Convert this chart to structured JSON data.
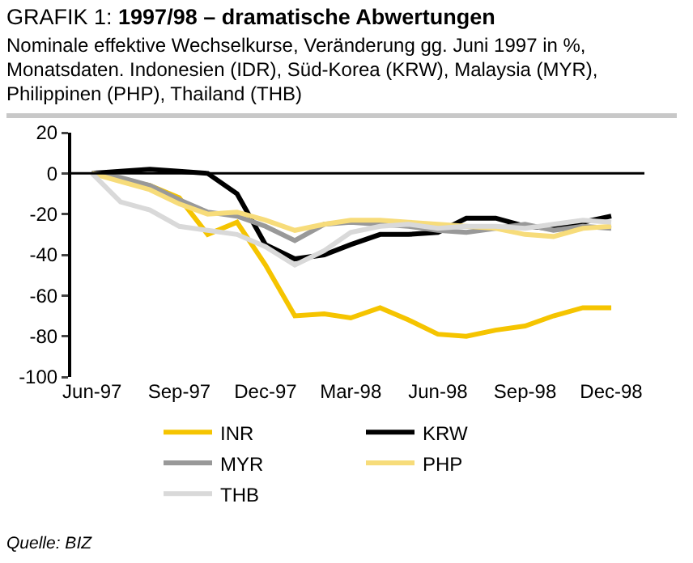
{
  "chart_data": {
    "type": "line",
    "title": "GRAFIK 1: 1997/98 – dramatische Abwertungen",
    "subtitle": "Nominale effektive Wechselkurse, Veränderung gg. Juni 1997 in %, Monatsdaten. Indonesien (IDR), Süd-Korea (KRW), Malaysia (MYR), Philippinen (PHP), Thailand (THB)",
    "annotations": [
      "Quelle: BIZ"
    ],
    "x": [
      "1997-06",
      "1997-07",
      "1997-08",
      "1997-09",
      "1997-10",
      "1997-11",
      "1997-12",
      "1998-01",
      "1998-02",
      "1998-03",
      "1998-04",
      "1998-05",
      "1998-06",
      "1998-07",
      "1998-08",
      "1998-09",
      "1998-10",
      "1998-11",
      "1998-12"
    ],
    "series": [
      {
        "name": "INR",
        "color": "#f5c400",
        "values": [
          0,
          -3,
          -6,
          -12,
          -30,
          -24,
          -45,
          -70,
          -69,
          -71,
          -66,
          -72,
          -79,
          -80,
          -77,
          -75,
          -70,
          -66,
          -66
        ]
      },
      {
        "name": "KRW",
        "color": "#000000",
        "values": [
          0,
          1,
          2,
          1,
          0,
          -10,
          -35,
          -42,
          -40,
          -35,
          -30,
          -30,
          -29,
          -22,
          -22,
          -26,
          -27,
          -24,
          -21
        ]
      },
      {
        "name": "MYR",
        "color": "#999999",
        "values": [
          0,
          -2,
          -6,
          -13,
          -19,
          -21,
          -26,
          -33,
          -25,
          -24,
          -25,
          -26,
          -28,
          -29,
          -27,
          -25,
          -28,
          -26,
          -27
        ]
      },
      {
        "name": "PHP",
        "color": "#f7dc7a",
        "values": [
          0,
          -4,
          -8,
          -15,
          -20,
          -19,
          -23,
          -28,
          -25,
          -23,
          -23,
          -24,
          -25,
          -26,
          -27,
          -30,
          -31,
          -27,
          -26
        ]
      },
      {
        "name": "THB",
        "color": "#d9d9d9",
        "values": [
          0,
          -14,
          -18,
          -26,
          -28,
          -30,
          -36,
          -45,
          -38,
          -29,
          -26,
          -25,
          -27,
          -26,
          -26,
          -27,
          -25,
          -23,
          -24
        ]
      }
    ],
    "xlim": [
      "1997-05-10",
      "1999-01-05"
    ],
    "xticks": [
      {
        "value": "1997-06",
        "label": "Jun-97"
      },
      {
        "value": "1997-09",
        "label": "Sep-97"
      },
      {
        "value": "1997-12",
        "label": "Dec-97"
      },
      {
        "value": "1998-03",
        "label": "Mar-98"
      },
      {
        "value": "1998-06",
        "label": "Jun-98"
      },
      {
        "value": "1998-09",
        "label": "Sep-98"
      },
      {
        "value": "1998-12",
        "label": "Dec-98"
      }
    ],
    "ylim": [
      -100,
      20
    ],
    "yticks": [
      -100,
      -80,
      -60,
      -40,
      -20,
      0,
      20
    ],
    "ref_lines": [
      {
        "axis": "y",
        "value": 0,
        "color": "#000000",
        "line_style": "solid"
      }
    ],
    "grid": false,
    "legend": "bottom",
    "marker": "none",
    "line_style": "solid"
  }
}
